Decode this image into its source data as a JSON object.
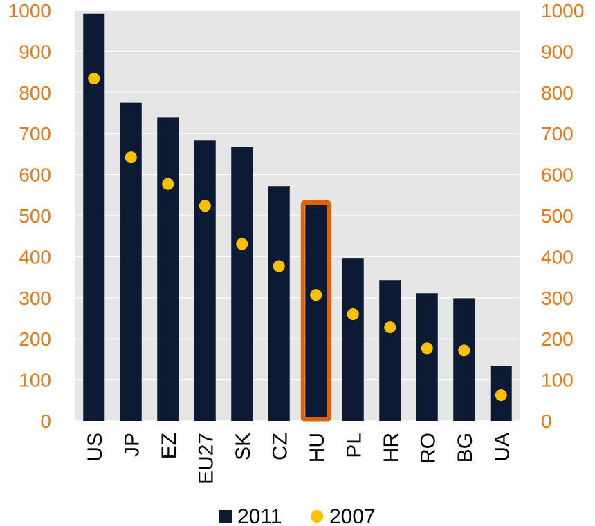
{
  "chart_data": {
    "type": "bar",
    "categories": [
      "US",
      "JP",
      "EZ",
      "EU27",
      "SK",
      "CZ",
      "HU",
      "PL",
      "HR",
      "RO",
      "BG",
      "UA"
    ],
    "series": [
      {
        "name": "2011",
        "kind": "bar",
        "color": "#0d1a33",
        "values": [
          992,
          775,
          740,
          683,
          668,
          572,
          526,
          397,
          343,
          311,
          299,
          133
        ]
      },
      {
        "name": "2007",
        "kind": "marker",
        "color": "#ffc000",
        "values": [
          834,
          642,
          577,
          524,
          431,
          377,
          307,
          260,
          228,
          177,
          172,
          63
        ]
      }
    ],
    "highlight": {
      "category": "HU",
      "color": "#e06010"
    },
    "ylim": [
      0,
      1000
    ],
    "yticks": [
      0,
      100,
      200,
      300,
      400,
      500,
      600,
      700,
      800,
      900,
      1000
    ],
    "axis_label_color": "#e07b1f",
    "plot_background": "#e6e6e6",
    "grid": true,
    "legend_position": "bottom"
  }
}
